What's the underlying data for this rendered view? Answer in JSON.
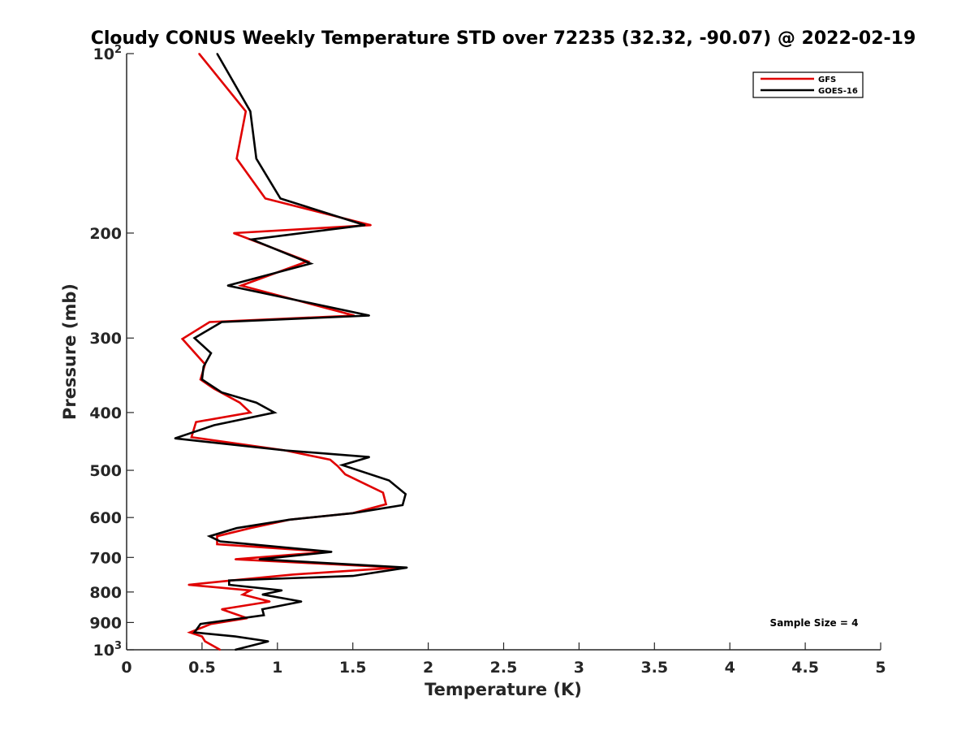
{
  "chart_data": {
    "type": "line",
    "title": "Cloudy CONUS Weekly Temperature STD over 72235 (32.32, -90.07) @ 2022-02-19",
    "xlabel": "Temperature (K)",
    "ylabel": "Pressure (mb)",
    "xlim": [
      0,
      5
    ],
    "ylim": [
      100,
      1000
    ],
    "yscale": "log",
    "y_reversed": true,
    "x_ticks": [
      0,
      0.5,
      1,
      1.5,
      2,
      2.5,
      3,
      3.5,
      4,
      4.5,
      5
    ],
    "x_tick_labels": [
      "0",
      "0.5",
      "1",
      "1.5",
      "2",
      "2.5",
      "3",
      "3.5",
      "4",
      "4.5",
      "5"
    ],
    "y_ticks": [
      100,
      200,
      300,
      400,
      500,
      600,
      700,
      800,
      900,
      1000
    ],
    "y_tick_labels": [
      {
        "base": "10",
        "exp": "2"
      },
      {
        "text": "200"
      },
      {
        "text": "300"
      },
      {
        "text": "400"
      },
      {
        "text": "500"
      },
      {
        "text": "600"
      },
      {
        "text": "700"
      },
      {
        "text": "800"
      },
      {
        "text": "900"
      },
      {
        "base": "10",
        "exp": "3"
      }
    ],
    "legend_position": "top-right",
    "annotation": "Sample Size = 4",
    "series": [
      {
        "name": "GFS",
        "color": "#e00000",
        "points": [
          [
            0.48,
            100
          ],
          [
            0.79,
            125
          ],
          [
            0.73,
            150
          ],
          [
            0.92,
            175
          ],
          [
            1.62,
            194
          ],
          [
            0.71,
            200
          ],
          [
            1.2,
            223
          ],
          [
            0.76,
            245
          ],
          [
            1.51,
            275
          ],
          [
            0.55,
            282
          ],
          [
            0.37,
            301
          ],
          [
            0.52,
            332
          ],
          [
            0.49,
            352
          ],
          [
            0.58,
            365
          ],
          [
            0.75,
            385
          ],
          [
            0.82,
            400
          ],
          [
            0.46,
            415
          ],
          [
            0.43,
            440
          ],
          [
            1.05,
            463
          ],
          [
            1.35,
            480
          ],
          [
            1.4,
            492
          ],
          [
            1.45,
            508
          ],
          [
            1.6,
            530
          ],
          [
            1.7,
            545
          ],
          [
            1.72,
            570
          ],
          [
            1.5,
            590
          ],
          [
            1.08,
            605
          ],
          [
            0.82,
            625
          ],
          [
            0.6,
            645
          ],
          [
            0.6,
            665
          ],
          [
            1.34,
            685
          ],
          [
            0.72,
            705
          ],
          [
            1.8,
            728
          ],
          [
            1.1,
            748
          ],
          [
            0.7,
            765
          ],
          [
            0.41,
            778
          ],
          [
            0.82,
            795
          ],
          [
            0.77,
            808
          ],
          [
            0.95,
            830
          ],
          [
            0.63,
            855
          ],
          [
            0.8,
            885
          ],
          [
            0.56,
            905
          ],
          [
            0.42,
            935
          ],
          [
            0.5,
            950
          ],
          [
            0.52,
            968
          ],
          [
            0.62,
            1000
          ]
        ]
      },
      {
        "name": "GOES-16",
        "color": "#000000",
        "points": [
          [
            0.6,
            100
          ],
          [
            0.82,
            125
          ],
          [
            0.86,
            150
          ],
          [
            1.02,
            175
          ],
          [
            1.58,
            194
          ],
          [
            0.83,
            205
          ],
          [
            1.22,
            225
          ],
          [
            0.67,
            245
          ],
          [
            1.61,
            275
          ],
          [
            0.63,
            282
          ],
          [
            0.45,
            300
          ],
          [
            0.56,
            318
          ],
          [
            0.51,
            335
          ],
          [
            0.5,
            352
          ],
          [
            0.63,
            370
          ],
          [
            0.86,
            385
          ],
          [
            0.98,
            400
          ],
          [
            0.58,
            420
          ],
          [
            0.32,
            442
          ],
          [
            1.05,
            463
          ],
          [
            1.61,
            475
          ],
          [
            1.43,
            490
          ],
          [
            1.74,
            520
          ],
          [
            1.85,
            548
          ],
          [
            1.83,
            572
          ],
          [
            1.5,
            590
          ],
          [
            1.08,
            605
          ],
          [
            0.73,
            625
          ],
          [
            0.55,
            645
          ],
          [
            0.62,
            658
          ],
          [
            1.36,
            685
          ],
          [
            0.88,
            705
          ],
          [
            1.86,
            728
          ],
          [
            1.5,
            752
          ],
          [
            0.68,
            765
          ],
          [
            0.68,
            778
          ],
          [
            1.03,
            795
          ],
          [
            0.9,
            808
          ],
          [
            1.16,
            830
          ],
          [
            0.9,
            855
          ],
          [
            0.91,
            875
          ],
          [
            0.49,
            905
          ],
          [
            0.45,
            935
          ],
          [
            0.72,
            950
          ],
          [
            0.94,
            968
          ],
          [
            0.72,
            1000
          ]
        ]
      }
    ]
  }
}
